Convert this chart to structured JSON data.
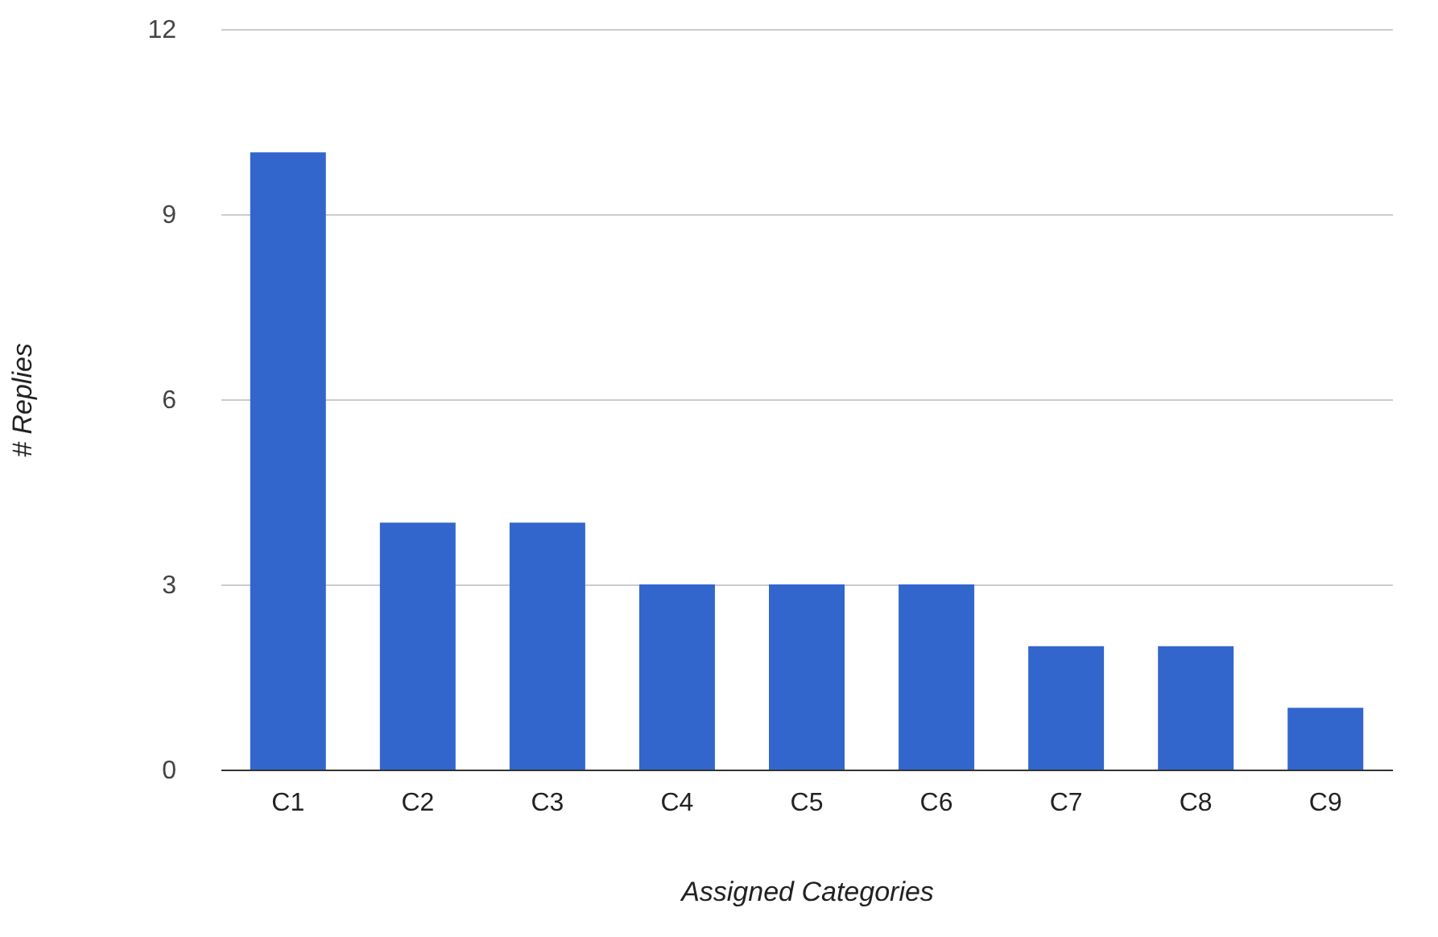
{
  "chart_data": {
    "type": "bar",
    "xlabel": "Assigned Categories",
    "ylabel": "# Replies",
    "categories": [
      "C1",
      "C2",
      "C3",
      "C4",
      "C5",
      "C6",
      "C7",
      "C8",
      "C9"
    ],
    "values": [
      10,
      4,
      4,
      3,
      3,
      3,
      2,
      2,
      1
    ],
    "color": "#3366cc",
    "ylim": [
      0,
      12
    ],
    "yticks": [
      0,
      3,
      6,
      9,
      12
    ],
    "grid": "y"
  }
}
